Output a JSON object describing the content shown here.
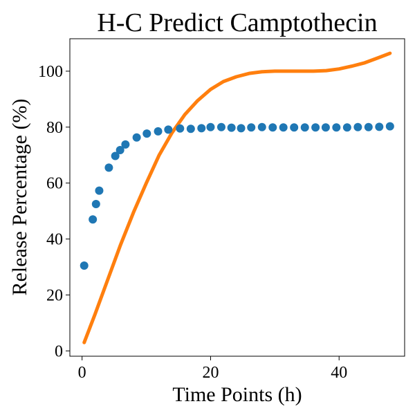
{
  "chart_data": {
    "type": "scatter",
    "title": "H-C Predict Camptothecin",
    "xlabel": "Time Points (h)",
    "ylabel": "Release Percentage (%)",
    "xlim": [
      -1.9,
      50.2
    ],
    "ylim": [
      -1.9,
      111.6
    ],
    "xticks": [
      0,
      20,
      40
    ],
    "yticks": [
      0,
      20,
      40,
      60,
      80,
      100
    ],
    "grid": false,
    "series": [
      {
        "kind": "scatter",
        "color": "#1f77b4",
        "x": [
          0.33,
          1.67,
          2.17,
          2.67,
          4.17,
          5.17,
          5.92,
          6.75,
          8.5,
          10.08,
          11.83,
          13.42,
          15.25,
          16.92,
          18.58,
          20.0,
          21.67,
          23.25,
          24.75,
          26.33,
          28.0,
          29.67,
          31.33,
          33.0,
          34.67,
          36.33,
          37.92,
          39.58,
          41.25,
          42.92,
          44.58,
          46.25,
          47.92
        ],
        "values": [
          30.5,
          47.0,
          52.5,
          57.3,
          65.5,
          69.7,
          71.8,
          73.8,
          76.3,
          77.7,
          78.5,
          79.1,
          79.5,
          79.4,
          79.6,
          80.0,
          80.0,
          79.8,
          79.6,
          79.9,
          80.0,
          79.9,
          79.9,
          79.9,
          79.9,
          79.9,
          79.9,
          79.9,
          79.9,
          80.0,
          80.0,
          80.1,
          80.3
        ]
      },
      {
        "kind": "line",
        "color": "#ff7f0e",
        "x": [
          0.33,
          2,
          4,
          6,
          8,
          10,
          12,
          14,
          16,
          18,
          20,
          22,
          24,
          26,
          28,
          30,
          32,
          34,
          36,
          38,
          40,
          42,
          44,
          46,
          47.92
        ],
        "values": [
          3.0,
          13.0,
          25.5,
          38.0,
          49.5,
          60.0,
          70.0,
          78.0,
          84.5,
          89.5,
          93.5,
          96.3,
          98.0,
          99.2,
          99.8,
          100.0,
          100.0,
          100.0,
          100.0,
          100.2,
          100.8,
          101.8,
          103.0,
          104.7,
          106.4
        ]
      }
    ]
  }
}
